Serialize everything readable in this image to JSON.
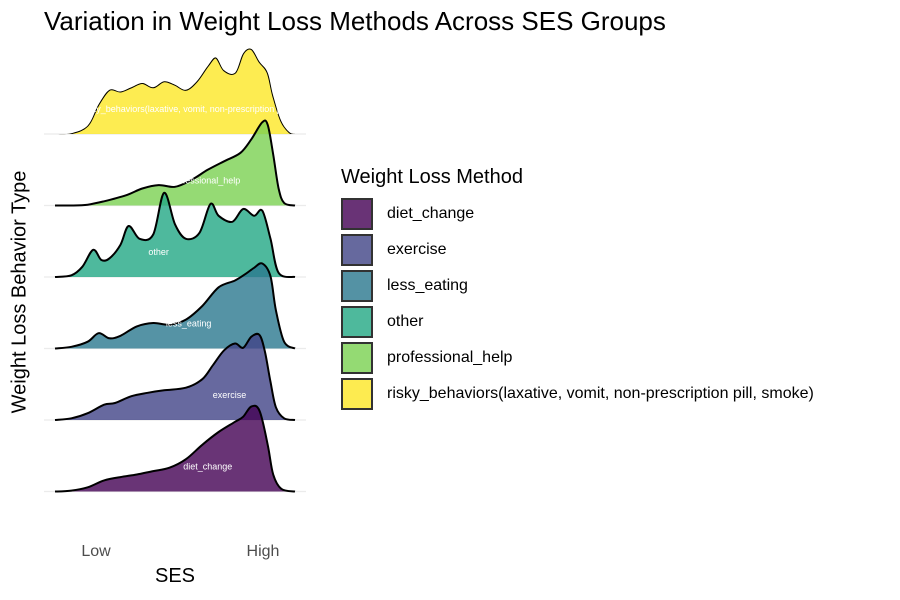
{
  "title": "Variation in Weight Loss Methods Across SES Groups",
  "legend": {
    "title": "Weight Loss Method",
    "items": [
      {
        "label": "diet_change",
        "color": "#440154"
      },
      {
        "label": "exercise",
        "color": "#414487"
      },
      {
        "label": "less_eating",
        "color": "#2A788E"
      },
      {
        "label": "other",
        "color": "#22A884"
      },
      {
        "label": "professional_help",
        "color": "#7AD151"
      },
      {
        "label": "risky_behaviors(laxative, vomit, non-prescription pill, smoke)",
        "color": "#FDE725"
      }
    ]
  },
  "chart_data": {
    "type": "area",
    "title": "Variation in Weight Loss Methods Across SES Groups",
    "xlabel": "SES",
    "ylabel": "Weight Loss Behavior Type",
    "x_ticks": [
      {
        "label": "Low",
        "value": 1
      },
      {
        "label": "High",
        "value": 4
      }
    ],
    "xlim": [
      0.2,
      4.6
    ],
    "grid": false,
    "legend_position": "right",
    "fill_opacity": 0.8,
    "series": [
      {
        "name": "diet_change",
        "ridge_label": "diet_change",
        "label_x": 3.0,
        "color": "#440154",
        "x": [
          0.2,
          0.5,
          0.8,
          1.1,
          1.4,
          1.7,
          2.0,
          2.3,
          2.6,
          2.9,
          3.2,
          3.5,
          3.65,
          3.8,
          3.95,
          4.1,
          4.2,
          4.35,
          4.6
        ],
        "density": [
          0.0,
          0.01,
          0.05,
          0.13,
          0.17,
          0.2,
          0.24,
          0.28,
          0.38,
          0.55,
          0.7,
          0.82,
          0.88,
          1.0,
          0.95,
          0.55,
          0.2,
          0.03,
          0.0
        ]
      },
      {
        "name": "exercise",
        "ridge_label": "exercise",
        "label_x": 3.4,
        "color": "#414487",
        "x": [
          0.2,
          0.5,
          0.8,
          1.1,
          1.3,
          1.6,
          1.9,
          2.2,
          2.6,
          2.9,
          3.1,
          3.3,
          3.5,
          3.65,
          3.8,
          3.95,
          4.05,
          4.15,
          4.25,
          4.4,
          4.6
        ],
        "density": [
          0.0,
          0.02,
          0.08,
          0.18,
          0.2,
          0.28,
          0.32,
          0.35,
          0.38,
          0.48,
          0.65,
          0.82,
          0.9,
          0.85,
          0.98,
          1.0,
          0.8,
          0.45,
          0.15,
          0.02,
          0.0
        ]
      },
      {
        "name": "less_eating",
        "ridge_label": "less_eating",
        "label_x": 2.65,
        "color": "#2A788E",
        "x": [
          0.2,
          0.5,
          0.8,
          1.0,
          1.2,
          1.4,
          1.7,
          2.0,
          2.3,
          2.6,
          2.9,
          3.2,
          3.5,
          3.7,
          3.85,
          4.0,
          4.15,
          4.25,
          4.4,
          4.6
        ],
        "density": [
          0.0,
          0.02,
          0.08,
          0.18,
          0.12,
          0.15,
          0.26,
          0.3,
          0.28,
          0.34,
          0.5,
          0.72,
          0.8,
          0.88,
          0.95,
          1.0,
          0.85,
          0.45,
          0.08,
          0.0
        ]
      },
      {
        "name": "other",
        "ridge_label": "other",
        "label_x": 2.1,
        "color": "#22A884",
        "x": [
          0.2,
          0.5,
          0.7,
          0.9,
          1.05,
          1.2,
          1.4,
          1.55,
          1.75,
          2.0,
          2.2,
          2.4,
          2.6,
          2.85,
          3.05,
          3.2,
          3.45,
          3.65,
          3.85,
          4.0,
          4.15,
          4.3,
          4.6
        ],
        "density": [
          0.0,
          0.02,
          0.12,
          0.32,
          0.2,
          0.22,
          0.38,
          0.6,
          0.45,
          0.5,
          0.99,
          0.62,
          0.45,
          0.52,
          0.86,
          0.72,
          0.65,
          0.8,
          0.72,
          0.78,
          0.45,
          0.05,
          0.0
        ]
      },
      {
        "name": "professional_help",
        "ridge_label": "professional_help",
        "label_x": 2.95,
        "color": "#7AD151",
        "x": [
          0.2,
          0.5,
          0.8,
          1.1,
          1.5,
          1.8,
          2.1,
          2.4,
          2.7,
          3.0,
          3.3,
          3.6,
          3.8,
          4.0,
          4.1,
          4.2,
          4.3,
          4.4,
          4.6
        ],
        "density": [
          0.0,
          0.0,
          0.01,
          0.05,
          0.12,
          0.2,
          0.24,
          0.22,
          0.3,
          0.42,
          0.52,
          0.62,
          0.78,
          0.98,
          0.95,
          0.6,
          0.2,
          0.03,
          0.0
        ]
      },
      {
        "name": "risky_behaviors(laxative, vomit, non-prescription pill, smoke)",
        "ridge_label": "risky_behaviors(laxative, vomit, non-prescription pill, smoke)",
        "label_x": 2.9,
        "color": "#FDE725",
        "x": [
          0.2,
          0.5,
          0.8,
          1.0,
          1.2,
          1.4,
          1.6,
          1.8,
          2.0,
          2.2,
          2.4,
          2.6,
          2.8,
          3.0,
          3.15,
          3.3,
          3.5,
          3.65,
          3.8,
          3.95,
          4.1,
          4.2,
          4.35,
          4.5,
          4.6
        ],
        "density": [
          0.0,
          0.01,
          0.1,
          0.35,
          0.52,
          0.5,
          0.55,
          0.6,
          0.55,
          0.62,
          0.58,
          0.52,
          0.62,
          0.8,
          0.9,
          0.75,
          0.72,
          0.95,
          1.0,
          0.85,
          0.72,
          0.45,
          0.15,
          0.02,
          0.0
        ]
      }
    ]
  }
}
